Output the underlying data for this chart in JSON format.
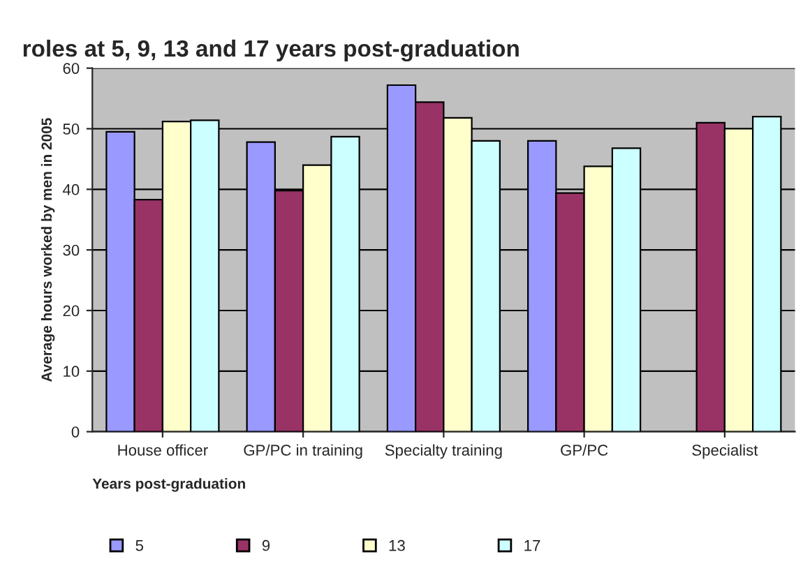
{
  "chart_data": {
    "type": "bar",
    "title": "roles at 5, 9, 13 and 17 years post-graduation",
    "ylabel": "Average hours worked by men in 2005",
    "xlabel": "Years post-graduation",
    "categories": [
      "House officer",
      "GP/PC in training",
      "Specialty training",
      "GP/PC",
      "Specialist"
    ],
    "series": [
      {
        "name": "5",
        "color": "#9999ff",
        "values": [
          49.5,
          47.8,
          57.2,
          48.0,
          null
        ]
      },
      {
        "name": "9",
        "color": "#993366",
        "values": [
          38.3,
          39.8,
          54.4,
          39.4,
          51.0
        ]
      },
      {
        "name": "13",
        "color": "#ffffcc",
        "values": [
          51.2,
          44.0,
          51.8,
          43.8,
          50.0
        ]
      },
      {
        "name": "17",
        "color": "#ccffff",
        "values": [
          51.4,
          48.7,
          48.0,
          46.8,
          52.0
        ]
      }
    ],
    "ylim": [
      0,
      60
    ],
    "yticks": [
      0,
      10,
      20,
      30,
      40,
      50,
      60
    ],
    "grid": "y",
    "legend": "bottom"
  }
}
